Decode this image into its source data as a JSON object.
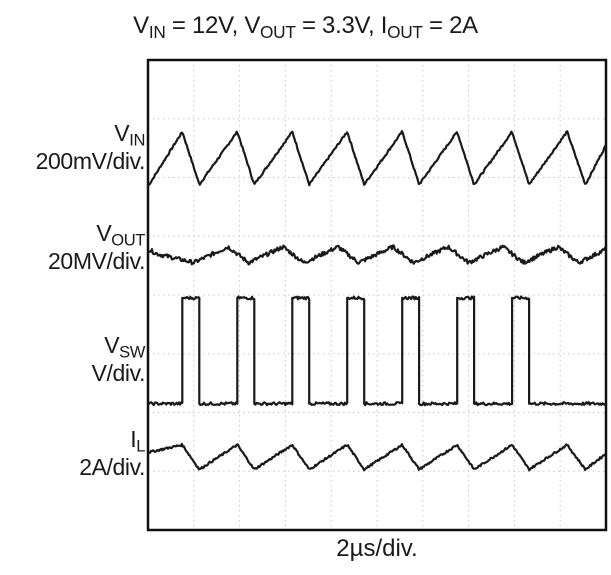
{
  "chart_data": {
    "type": "line",
    "title": {
      "parts": [
        {
          "base": "V",
          "sub": "IN",
          "value": " = 12V, "
        },
        {
          "base": "V",
          "sub": "OUT",
          "value": " = 3.3V, "
        },
        {
          "base": "I",
          "sub": "OUT",
          "value": " = 2A"
        }
      ]
    },
    "xlabel": "2µs/div.",
    "grid": true,
    "divisions": {
      "x": 10,
      "y": 8
    },
    "xlim": [
      0,
      10
    ],
    "ylim": [
      0,
      8
    ],
    "series": [
      {
        "label_base": "V",
        "label_sub": "IN",
        "scale": "200mV/div.",
        "shape": "sawtooth",
        "baseline": 6.35,
        "amplitude": 0.48,
        "color": "#1a1a1a",
        "points": [
          [
            0,
            5.85
          ],
          [
            0.75,
            6.78
          ],
          [
            1.12,
            5.88
          ],
          [
            1.95,
            6.78
          ],
          [
            2.32,
            5.88
          ],
          [
            3.15,
            6.78
          ],
          [
            3.52,
            5.88
          ],
          [
            4.35,
            6.78
          ],
          [
            4.72,
            5.88
          ],
          [
            5.55,
            6.78
          ],
          [
            5.92,
            5.88
          ],
          [
            6.75,
            6.78
          ],
          [
            7.12,
            5.88
          ],
          [
            7.95,
            6.78
          ],
          [
            8.32,
            5.88
          ],
          [
            9.15,
            6.78
          ],
          [
            9.55,
            5.88
          ],
          [
            10,
            6.55
          ]
        ]
      },
      {
        "label_base": "V",
        "label_sub": "OUT",
        "scale": "20MV/div.",
        "shape": "ripple",
        "baseline": 4.7,
        "amplitude": 0.12,
        "color": "#1a1a1a",
        "points": [
          [
            0,
            4.78
          ],
          [
            0.2,
            4.7
          ],
          [
            1.0,
            4.55
          ],
          [
            1.75,
            4.82
          ],
          [
            2.2,
            4.55
          ],
          [
            2.95,
            4.82
          ],
          [
            3.4,
            4.55
          ],
          [
            4.15,
            4.82
          ],
          [
            4.6,
            4.55
          ],
          [
            5.35,
            4.82
          ],
          [
            5.8,
            4.55
          ],
          [
            6.55,
            4.82
          ],
          [
            7.0,
            4.55
          ],
          [
            7.75,
            4.82
          ],
          [
            8.2,
            4.55
          ],
          [
            8.95,
            4.82
          ],
          [
            9.4,
            4.55
          ],
          [
            10,
            4.78
          ]
        ]
      },
      {
        "label_base": "V",
        "label_sub": "SW",
        "scale": "V/div.",
        "shape": "pulse",
        "low": 2.15,
        "high": 3.95,
        "color": "#1a1a1a",
        "pulses": [
          [
            0.75,
            1.12
          ],
          [
            1.95,
            2.32
          ],
          [
            3.15,
            3.52
          ],
          [
            4.35,
            4.72
          ],
          [
            5.55,
            5.92
          ],
          [
            6.75,
            7.12
          ],
          [
            7.95,
            8.32
          ]
        ]
      },
      {
        "label_base": "I",
        "label_sub": "L",
        "scale": "2A/div.",
        "shape": "triangle",
        "baseline": 1.25,
        "amplitude": 0.22,
        "color": "#1a1a1a",
        "points": [
          [
            0,
            1.32
          ],
          [
            0.75,
            1.45
          ],
          [
            1.12,
            1.03
          ],
          [
            1.95,
            1.45
          ],
          [
            2.32,
            1.03
          ],
          [
            3.15,
            1.45
          ],
          [
            3.52,
            1.03
          ],
          [
            4.35,
            1.45
          ],
          [
            4.72,
            1.03
          ],
          [
            5.55,
            1.45
          ],
          [
            5.92,
            1.03
          ],
          [
            6.75,
            1.45
          ],
          [
            7.12,
            1.03
          ],
          [
            7.95,
            1.45
          ],
          [
            8.32,
            1.03
          ],
          [
            9.15,
            1.45
          ],
          [
            9.55,
            1.03
          ],
          [
            10,
            1.3
          ]
        ]
      }
    ]
  }
}
